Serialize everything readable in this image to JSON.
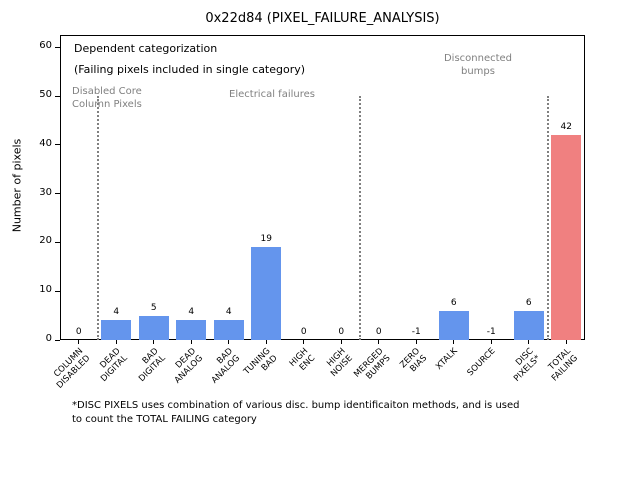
{
  "title": "0x22d84 (PIXEL_FAILURE_ANALYSIS)",
  "ylabel": "Number of pixels",
  "annotations": {
    "dependent_line1": "Dependent categorization",
    "dependent_line2": "(Failing pixels included in single category)",
    "disabled_core_line1": "Disabled Core",
    "disabled_core_line2": "Column Pixels",
    "electrical": "Electrical failures",
    "disconnected_line1": "Disconnected",
    "disconnected_line2": "bumps"
  },
  "footnote": {
    "line1": "*DISC PIXELS uses combination of various disc. bump identificaiton methods, and is used",
    "line2": "to count the TOTAL FAILING category"
  },
  "colors": {
    "bar": "#6495ed",
    "total_bar": "#f08080",
    "annotation_gray": "#808080",
    "separator_gray": "#808080"
  },
  "chart_data": {
    "type": "bar",
    "title": "0x22d84 (PIXEL_FAILURE_ANALYSIS)",
    "xlabel": "",
    "ylabel": "Number of pixels",
    "ylim": [
      0,
      62.5
    ],
    "yticks": [
      0,
      10,
      20,
      30,
      40,
      50,
      60
    ],
    "grid": false,
    "categories": [
      "COLUMN DISABLED",
      "DEAD DIGITAL",
      "BAD DIGITAL",
      "DEAD ANALOG",
      "BAD ANALOG",
      "TUNING BAD",
      "HIGH ENC",
      "HIGH NOISE",
      "MERGED BUMPS",
      "ZERO BIAS",
      "XTALK",
      "SOURCE",
      "DISC PIXELS*",
      "TOTAL FAILING"
    ],
    "category_label_lines": [
      [
        "COLUMN",
        "DISABLED"
      ],
      [
        "DEAD",
        "DIGITAL"
      ],
      [
        "BAD",
        "DIGITAL"
      ],
      [
        "DEAD",
        "ANALOG"
      ],
      [
        "BAD",
        "ANALOG"
      ],
      [
        "TUNING",
        "BAD"
      ],
      [
        "HIGH",
        "ENC"
      ],
      [
        "HIGH",
        "NOISE"
      ],
      [
        "MERGED",
        "BUMPS"
      ],
      [
        "ZERO",
        "BIAS"
      ],
      [
        "XTALK"
      ],
      [
        "SOURCE"
      ],
      [
        "DISC",
        "PIXELS*"
      ],
      [
        "TOTAL",
        "FAILING"
      ]
    ],
    "values": [
      0,
      4,
      5,
      4,
      4,
      19,
      0,
      0,
      0,
      -1,
      6,
      -1,
      6,
      42
    ],
    "total_bar_index": 13,
    "separator_boundaries_after": [
      0,
      7,
      12
    ],
    "separator_height_data_units": 50,
    "section_labels": [
      "Disabled Core Column Pixels",
      "Electrical failures",
      "Disconnected bumps"
    ]
  }
}
